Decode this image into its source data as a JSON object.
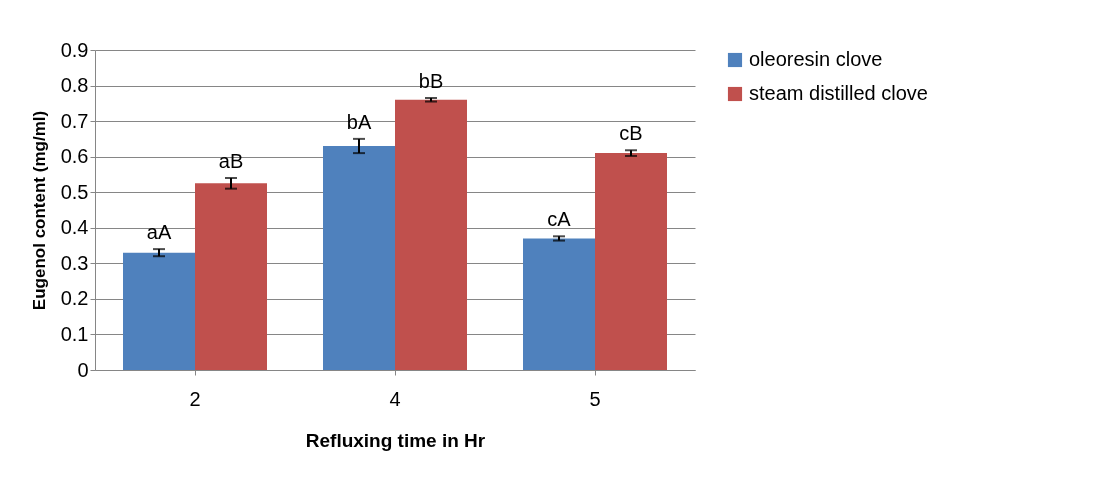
{
  "chart_data": {
    "type": "bar",
    "xlabel": "Refluxing time in Hr",
    "ylabel": "Eugenol content (mg/ml)",
    "categories": [
      "2",
      "4",
      "5"
    ],
    "series": [
      {
        "name": "oleoresin clove",
        "color": "#4f81bd",
        "values": [
          0.33,
          0.63,
          0.37
        ],
        "errors": [
          0.01,
          0.02,
          0.006
        ],
        "value_labels": [
          "aA",
          "bA",
          "cA"
        ]
      },
      {
        "name": "steam distilled clove",
        "color": "#c0504d",
        "values": [
          0.525,
          0.76,
          0.61
        ],
        "errors": [
          0.015,
          0.005,
          0.008
        ],
        "value_labels": [
          "aB",
          "bB",
          "cB"
        ]
      }
    ],
    "ylim": [
      0,
      0.9
    ],
    "yticks": [
      0,
      0.1,
      0.2,
      0.3,
      0.4,
      0.5,
      0.6,
      0.7,
      0.8,
      0.9
    ],
    "grid": "y",
    "legend": "right"
  }
}
